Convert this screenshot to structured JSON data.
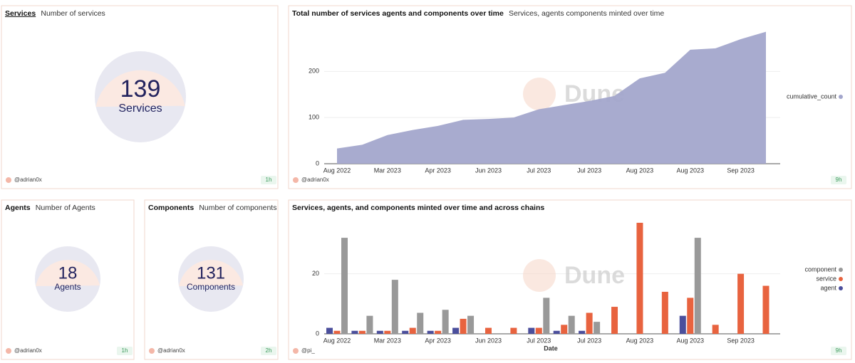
{
  "counters": [
    {
      "title": "Services",
      "subtitle": "Number of services",
      "value": 139,
      "label": "Services",
      "author": "@adrian0x",
      "age": "1h"
    },
    {
      "title": "Agents",
      "subtitle": "Number of Agents",
      "value": 18,
      "label": "Agents",
      "author": "@adrian0x",
      "age": "1h"
    },
    {
      "title": "Components",
      "subtitle": "Number of components",
      "value": 131,
      "label": "Components",
      "author": "@adrian0x",
      "age": "2h"
    }
  ],
  "chart_data": [
    {
      "type": "area",
      "title": "Total number of services agents and components over time",
      "subtitle": "Services, agents components minted over time",
      "watermark": "Dune",
      "author": "@adrian0x",
      "age": "9h",
      "categories": [
        "Aug 2022",
        null,
        "Mar 2023",
        null,
        "Apr 2023",
        null,
        "Jun 2023",
        null,
        "Jul 2023",
        null,
        "Jul 2023",
        null,
        "Aug 2023",
        null,
        "Aug 2023",
        null,
        "Sep 2023",
        null
      ],
      "series": [
        {
          "name": "cumulative_count",
          "color": "#a3a6cc",
          "values": [
            33,
            41,
            62,
            73,
            82,
            95,
            97,
            100,
            118,
            127,
            136,
            147,
            185,
            197,
            247,
            250,
            270,
            286
          ]
        }
      ],
      "ylim": [
        0,
        290
      ],
      "yticks": [
        0,
        100,
        200
      ],
      "grid": true,
      "legend": "right"
    },
    {
      "type": "bar",
      "title": "Services, agents, and components minted over time and across chains",
      "x_label": "Date",
      "watermark": "Dune",
      "author": "@pi_",
      "age": "9h",
      "categories": [
        "Aug 2022",
        null,
        "Mar 2023",
        null,
        "Apr 2023",
        null,
        "Jun 2023",
        null,
        "Jul 2023",
        null,
        "Jul 2023",
        null,
        "Aug 2023",
        null,
        "Aug 2023",
        null,
        "Sep 2023",
        null
      ],
      "series": [
        {
          "name": "component",
          "color": "#999999",
          "values": [
            32,
            6,
            18,
            7,
            8,
            6,
            null,
            null,
            12,
            6,
            4,
            null,
            null,
            null,
            32,
            null,
            null,
            null
          ]
        },
        {
          "name": "service",
          "color": "#e8633f",
          "values": [
            1,
            1,
            1,
            2,
            1,
            5,
            2,
            2,
            2,
            3,
            7,
            9,
            37,
            14,
            12,
            3,
            20,
            16
          ]
        },
        {
          "name": "agent",
          "color": "#4b4f9c",
          "values": [
            2,
            1,
            1,
            1,
            1,
            2,
            null,
            null,
            2,
            1,
            1,
            null,
            null,
            null,
            6,
            null,
            null,
            null
          ]
        }
      ],
      "ylim": [
        0,
        37
      ],
      "yticks": [
        0,
        20
      ],
      "grid": true,
      "legend": "right"
    }
  ]
}
